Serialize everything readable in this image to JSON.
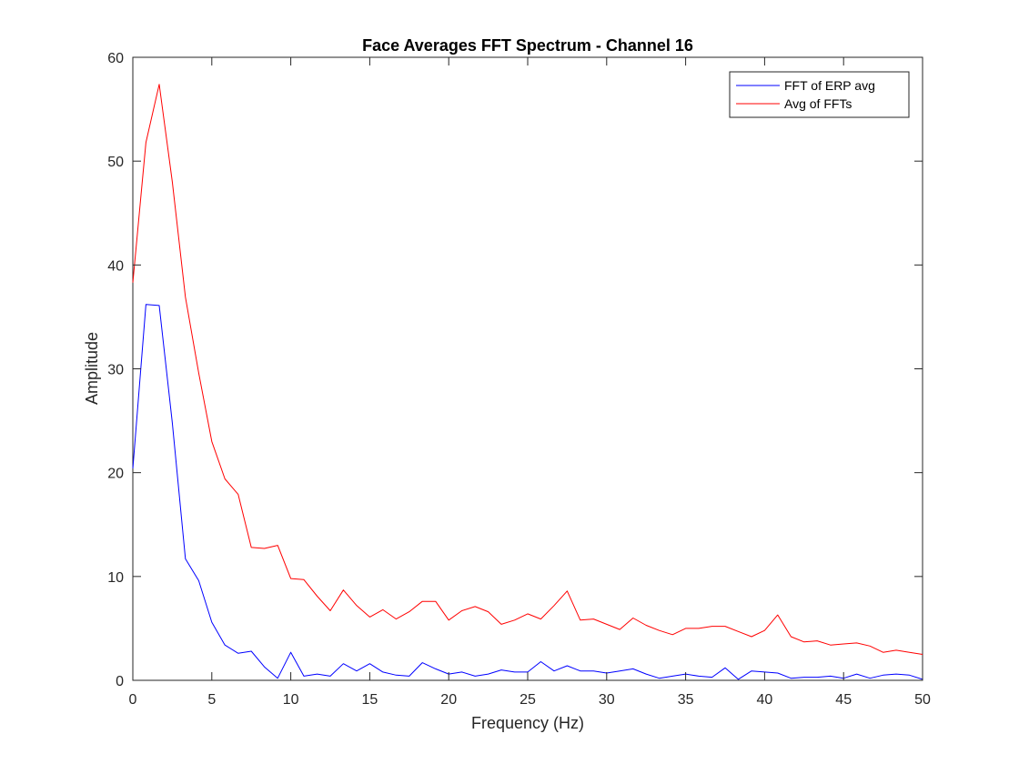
{
  "chart_data": {
    "type": "line",
    "title": "Face Averages FFT Spectrum - Channel 16",
    "xlabel": "Frequency (Hz)",
    "ylabel": "Amplitude",
    "xlim": [
      0,
      50
    ],
    "ylim": [
      0,
      60
    ],
    "xticks": [
      0,
      5,
      10,
      15,
      20,
      25,
      30,
      35,
      40,
      45,
      50
    ],
    "yticks": [
      0,
      10,
      20,
      30,
      40,
      50,
      60
    ],
    "grid": false,
    "legend_position": "top-right",
    "x": [
      0,
      0.83,
      1.67,
      2.5,
      3.33,
      4.17,
      5,
      5.83,
      6.67,
      7.5,
      8.33,
      9.17,
      10,
      10.83,
      11.67,
      12.5,
      13.33,
      14.17,
      15,
      15.83,
      16.67,
      17.5,
      18.33,
      19.17,
      20,
      20.83,
      21.67,
      22.5,
      23.33,
      24.17,
      25,
      25.83,
      26.67,
      27.5,
      28.33,
      29.17,
      30,
      30.83,
      31.67,
      32.5,
      33.33,
      34.17,
      35,
      35.83,
      36.67,
      37.5,
      38.33,
      39.17,
      40,
      40.83,
      41.67,
      42.5,
      43.33,
      44.17,
      45,
      45.83,
      46.67,
      47.5,
      48.33,
      49.17,
      50
    ],
    "series": [
      {
        "name": "FFT of ERP avg",
        "color": "#0000ff",
        "values": [
          20.4,
          36.2,
          36.1,
          24.8,
          11.7,
          9.6,
          5.6,
          3.4,
          2.6,
          2.8,
          1.3,
          0.2,
          2.7,
          0.4,
          0.6,
          0.4,
          1.6,
          0.9,
          1.6,
          0.8,
          0.5,
          0.4,
          1.7,
          1.1,
          0.6,
          0.8,
          0.4,
          0.6,
          1.0,
          0.8,
          0.8,
          1.8,
          0.9,
          1.4,
          0.9,
          0.9,
          0.7,
          0.9,
          1.1,
          0.6,
          0.2,
          0.4,
          0.6,
          0.4,
          0.3,
          1.2,
          0.1,
          0.9,
          0.8,
          0.7,
          0.2,
          0.3,
          0.3,
          0.4,
          0.2,
          0.6,
          0.2,
          0.5,
          0.6,
          0.5,
          0.1
        ]
      },
      {
        "name": "Avg of FFTs",
        "color": "#ff0000",
        "values": [
          38.3,
          51.8,
          57.4,
          48.0,
          36.9,
          29.6,
          23.0,
          19.4,
          17.9,
          12.8,
          12.7,
          13.0,
          9.8,
          9.7,
          8.1,
          6.7,
          8.7,
          7.2,
          6.1,
          6.8,
          5.9,
          6.6,
          7.6,
          7.6,
          5.8,
          6.7,
          7.1,
          6.6,
          5.4,
          5.8,
          6.4,
          5.9,
          7.2,
          8.6,
          5.8,
          5.9,
          5.4,
          4.9,
          6.0,
          5.3,
          4.8,
          4.4,
          5.0,
          5.0,
          5.2,
          5.2,
          4.7,
          4.2,
          4.8,
          6.3,
          4.2,
          3.7,
          3.8,
          3.4,
          3.5,
          3.6,
          3.3,
          2.7,
          2.9,
          2.7,
          2.5
        ]
      }
    ]
  }
}
